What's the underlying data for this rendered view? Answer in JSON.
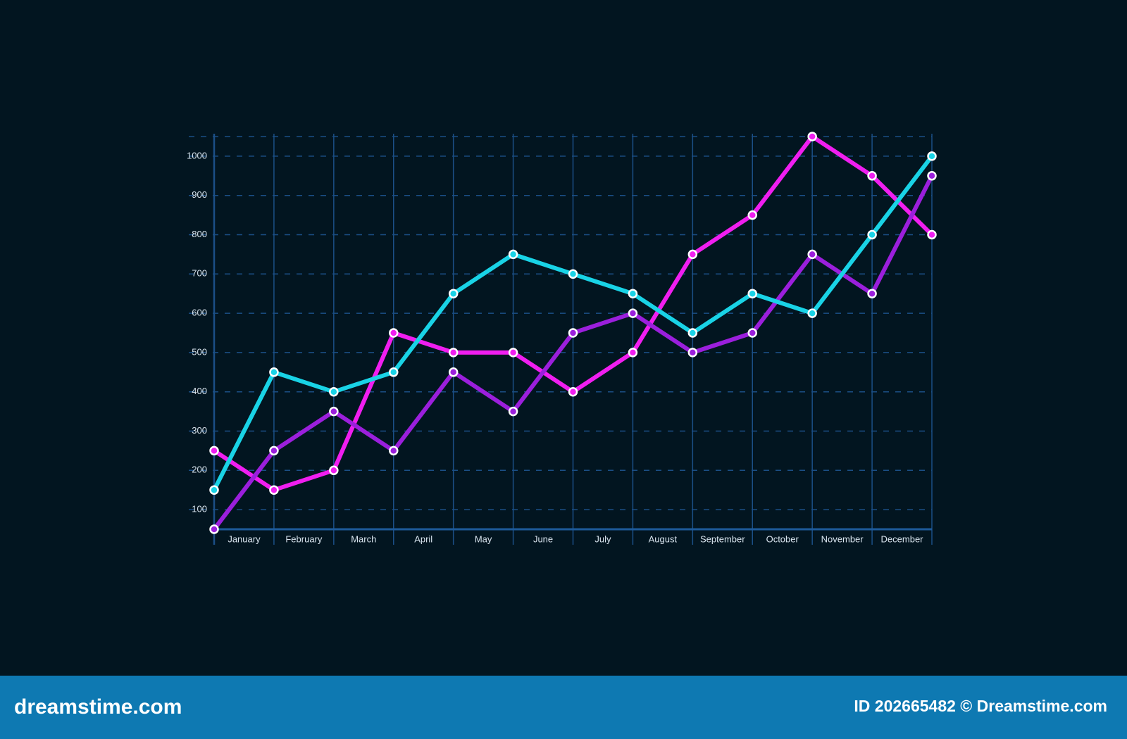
{
  "chart_data": {
    "type": "line",
    "x": [
      0,
      1,
      2,
      3,
      4,
      5,
      6,
      7,
      8,
      9,
      10,
      11,
      12
    ],
    "xlim": [
      0,
      12
    ],
    "xticks": [
      {
        "value": 0.5,
        "label": "January"
      },
      {
        "value": 1.5,
        "label": "February"
      },
      {
        "value": 2.5,
        "label": "March"
      },
      {
        "value": 3.5,
        "label": "April"
      },
      {
        "value": 4.5,
        "label": "May"
      },
      {
        "value": 5.5,
        "label": "June"
      },
      {
        "value": 6.5,
        "label": "July"
      },
      {
        "value": 7.5,
        "label": "August"
      },
      {
        "value": 8.5,
        "label": "September"
      },
      {
        "value": 9.5,
        "label": "October"
      },
      {
        "value": 10.5,
        "label": "November"
      },
      {
        "value": 11.5,
        "label": "December"
      }
    ],
    "ylim": [
      50,
      1050
    ],
    "yticks": [
      100,
      200,
      300,
      400,
      500,
      600,
      700,
      800,
      900,
      1000
    ],
    "grid": true,
    "series": [
      {
        "color": "#f01ef0",
        "values": [
          250,
          150,
          200,
          550,
          500,
          500,
          400,
          500,
          750,
          850,
          1050,
          950,
          800
        ]
      },
      {
        "color": "#9b1fdc",
        "values": [
          50,
          250,
          350,
          250,
          450,
          350,
          550,
          600,
          500,
          550,
          750,
          650,
          950
        ]
      },
      {
        "color": "#19d3e6",
        "values": [
          150,
          450,
          400,
          450,
          650,
          750,
          700,
          650,
          550,
          650,
          600,
          800,
          1000
        ]
      }
    ]
  },
  "footer": {
    "left": "dreamstime.com",
    "right": "ID 202665482 © Dreamstime.com"
  }
}
